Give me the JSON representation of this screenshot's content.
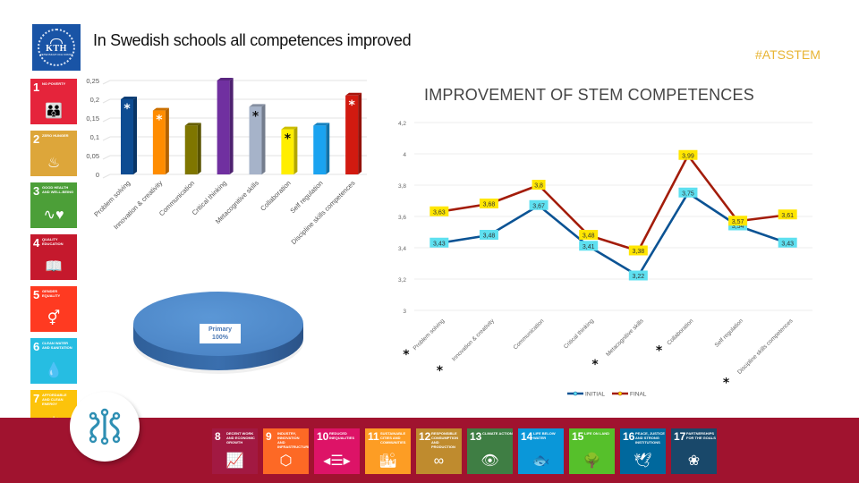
{
  "slide": {
    "title": "In Swedish schools all competences improved",
    "hashtag": "#ATSSTEM",
    "logo": {
      "text": "KTH",
      "subtext": "VETENSKAP OCH KONST",
      "icon": "kth-crown-seal-icon"
    }
  },
  "sdg_left": [
    {
      "num": "1",
      "label": "No poverty",
      "color": "#e5243b",
      "icon": "family-icon",
      "glyph": "👪"
    },
    {
      "num": "2",
      "label": "Zero hunger",
      "color": "#dda63a",
      "icon": "bowl-icon",
      "glyph": "♨"
    },
    {
      "num": "3",
      "label": "Good health and well-being",
      "color": "#4c9f38",
      "icon": "heartbeat-icon",
      "glyph": "∿♥"
    },
    {
      "num": "4",
      "label": "Quality education",
      "color": "#c5192d",
      "icon": "book-pencil-icon",
      "glyph": "📖"
    },
    {
      "num": "5",
      "label": "Gender equality",
      "color": "#ff3a21",
      "icon": "gender-equality-icon",
      "glyph": "⚥"
    },
    {
      "num": "6",
      "label": "Clean water and sanitation",
      "color": "#26bde2",
      "icon": "water-drop-icon",
      "glyph": "💧"
    },
    {
      "num": "7",
      "label": "Affordable and clean energy",
      "color": "#fcc30b",
      "icon": "sun-icon",
      "glyph": "☀"
    }
  ],
  "sdg_bottom": [
    {
      "num": "8",
      "label": "Decent work and economic growth",
      "color": "#a21942",
      "icon": "growth-chart-icon",
      "glyph": "📈"
    },
    {
      "num": "9",
      "label": "Industry, innovation and infrastructure",
      "color": "#fd6925",
      "icon": "cubes-icon",
      "glyph": "⬡"
    },
    {
      "num": "10",
      "label": "Reduced inequalities",
      "color": "#dd1367",
      "icon": "equals-arrows-icon",
      "glyph": "◂☰▸"
    },
    {
      "num": "11",
      "label": "Sustainable cities and communities",
      "color": "#fd9d24",
      "icon": "city-icon",
      "glyph": "🏙"
    },
    {
      "num": "12",
      "label": "Responsible consumption and production",
      "color": "#bf8b2e",
      "icon": "infinity-icon",
      "glyph": "∞"
    },
    {
      "num": "13",
      "label": "Climate action",
      "color": "#3f7e44",
      "icon": "eye-globe-icon",
      "glyph": "👁"
    },
    {
      "num": "14",
      "label": "Life below water",
      "color": "#0a97d9",
      "icon": "fish-icon",
      "glyph": "🐟"
    },
    {
      "num": "15",
      "label": "Life on land",
      "color": "#56c02b",
      "icon": "tree-birds-icon",
      "glyph": "🌳"
    },
    {
      "num": "16",
      "label": "Peace, justice and strong institutions",
      "color": "#00689d",
      "icon": "dove-gavel-icon",
      "glyph": "🕊"
    },
    {
      "num": "17",
      "label": "Partnerships for the goals",
      "color": "#19486a",
      "icon": "rings-icon",
      "glyph": "❀"
    }
  ],
  "band_icon": "circuit-nodes-icon",
  "chart_data": [
    {
      "type": "bar",
      "title": "",
      "categories": [
        "Problem solving",
        "Innovation & creativity",
        "Communication",
        "Critical thinking",
        "Metacognitive skills",
        "Collaboration",
        "Self regulation",
        "Discipline skills competences"
      ],
      "values": [
        0.2,
        0.17,
        0.13,
        0.25,
        0.18,
        0.12,
        0.13,
        0.21
      ],
      "colors": [
        "#0e4c92",
        "#ff8c00",
        "#7f7600",
        "#7030a0",
        "#a6b3c9",
        "#ffee00",
        "#1aa3f0",
        "#d21a10"
      ],
      "significance_markers": [
        true,
        true,
        false,
        false,
        true,
        true,
        false,
        true
      ],
      "marker_colors": [
        "#ffffff",
        "#ffffff",
        "",
        "",
        "#111111",
        "#111111",
        "",
        "#ffffff"
      ],
      "ylim": [
        0,
        0.25
      ],
      "yticks": [
        "0",
        "0,05",
        "0,1",
        "0,15",
        "0,2",
        "0,25"
      ],
      "grid": true,
      "xlabel": "",
      "ylabel": ""
    },
    {
      "type": "pie",
      "title": "",
      "categories": [
        "Primary"
      ],
      "values": [
        100
      ],
      "labels": [
        "Primary",
        "100%"
      ],
      "colors": [
        "#4a86c8"
      ]
    },
    {
      "type": "line",
      "title": "IMPROVEMENT OF STEM COMPETENCES",
      "categories": [
        "Problem solving",
        "Innovation & creativity",
        "Communication",
        "Critical thinking",
        "Metacognitive skills",
        "Collaboration",
        "Self regulation",
        "Discipline skills competences"
      ],
      "series": [
        {
          "name": "INITIAL",
          "values": [
            3.43,
            3.48,
            3.67,
            3.41,
            3.22,
            3.75,
            3.54,
            3.43
          ],
          "labels": [
            "3,43",
            "3,48",
            "3,67",
            "3,41",
            "3,22",
            "3,75",
            "3,54",
            "3,43"
          ],
          "color": "#0b5394",
          "label_bg": "#5ee0f0"
        },
        {
          "name": "FINAL",
          "values": [
            3.63,
            3.68,
            3.8,
            3.48,
            3.38,
            3.99,
            3.57,
            3.61
          ],
          "labels": [
            "3,63",
            "3,68",
            "3,8",
            "3,48",
            "3,38",
            "3,99",
            "3,57",
            "3,61"
          ],
          "color": "#a31c0a",
          "label_bg": "#ffe600"
        }
      ],
      "significance_markers": [
        true,
        true,
        false,
        false,
        true,
        true,
        false,
        true
      ],
      "ylim": [
        3,
        4.2
      ],
      "yticks": [
        "3",
        "3,2",
        "3,4",
        "3,6",
        "3,8",
        "4",
        "4,2"
      ],
      "grid": true,
      "legend_position": "bottom",
      "xlabel": "",
      "ylabel": ""
    }
  ]
}
